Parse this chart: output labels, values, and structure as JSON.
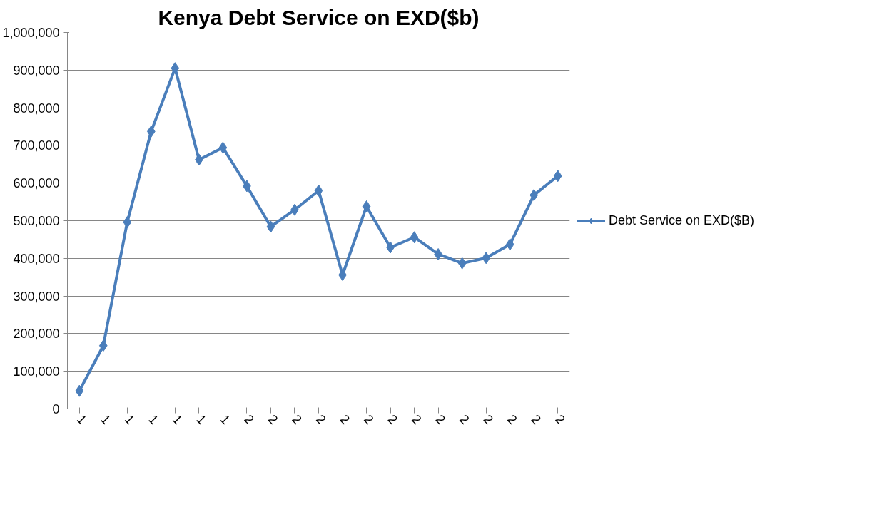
{
  "chart_data": {
    "type": "line",
    "title": "Kenya Debt Service on EXD($b)",
    "categories": [
      "1",
      "1",
      "1",
      "1",
      "1",
      "1",
      "1",
      "2",
      "2",
      "2",
      "2",
      "2",
      "2",
      "2",
      "2",
      "2",
      "2",
      "2",
      "2",
      "2",
      "2"
    ],
    "series": [
      {
        "name": "Debt Service on EXD($B)",
        "color": "#4a7ebb",
        "values": [
          48000,
          168000,
          496000,
          737000,
          905000,
          662000,
          694000,
          592000,
          484000,
          529000,
          580000,
          356000,
          538000,
          429000,
          456000,
          411000,
          387000,
          401000,
          437000,
          568000,
          619000
        ]
      }
    ],
    "ylim": [
      0,
      1000000
    ],
    "yticks": [
      {
        "value": 0,
        "label": "0"
      },
      {
        "value": 100000,
        "label": "100,000"
      },
      {
        "value": 200000,
        "label": "200,000"
      },
      {
        "value": 300000,
        "label": "300,000"
      },
      {
        "value": 400000,
        "label": "400,000"
      },
      {
        "value": 500000,
        "label": "500,000"
      },
      {
        "value": 600000,
        "label": "600,000"
      },
      {
        "value": 700000,
        "label": "700,000"
      },
      {
        "value": 800000,
        "label": "800,000"
      },
      {
        "value": 900000,
        "label": "900,000"
      },
      {
        "value": 1000000,
        "label": "1,000,000"
      }
    ],
    "grid": "y",
    "legend": "right",
    "marker": "diamond",
    "line_style": "solid"
  }
}
